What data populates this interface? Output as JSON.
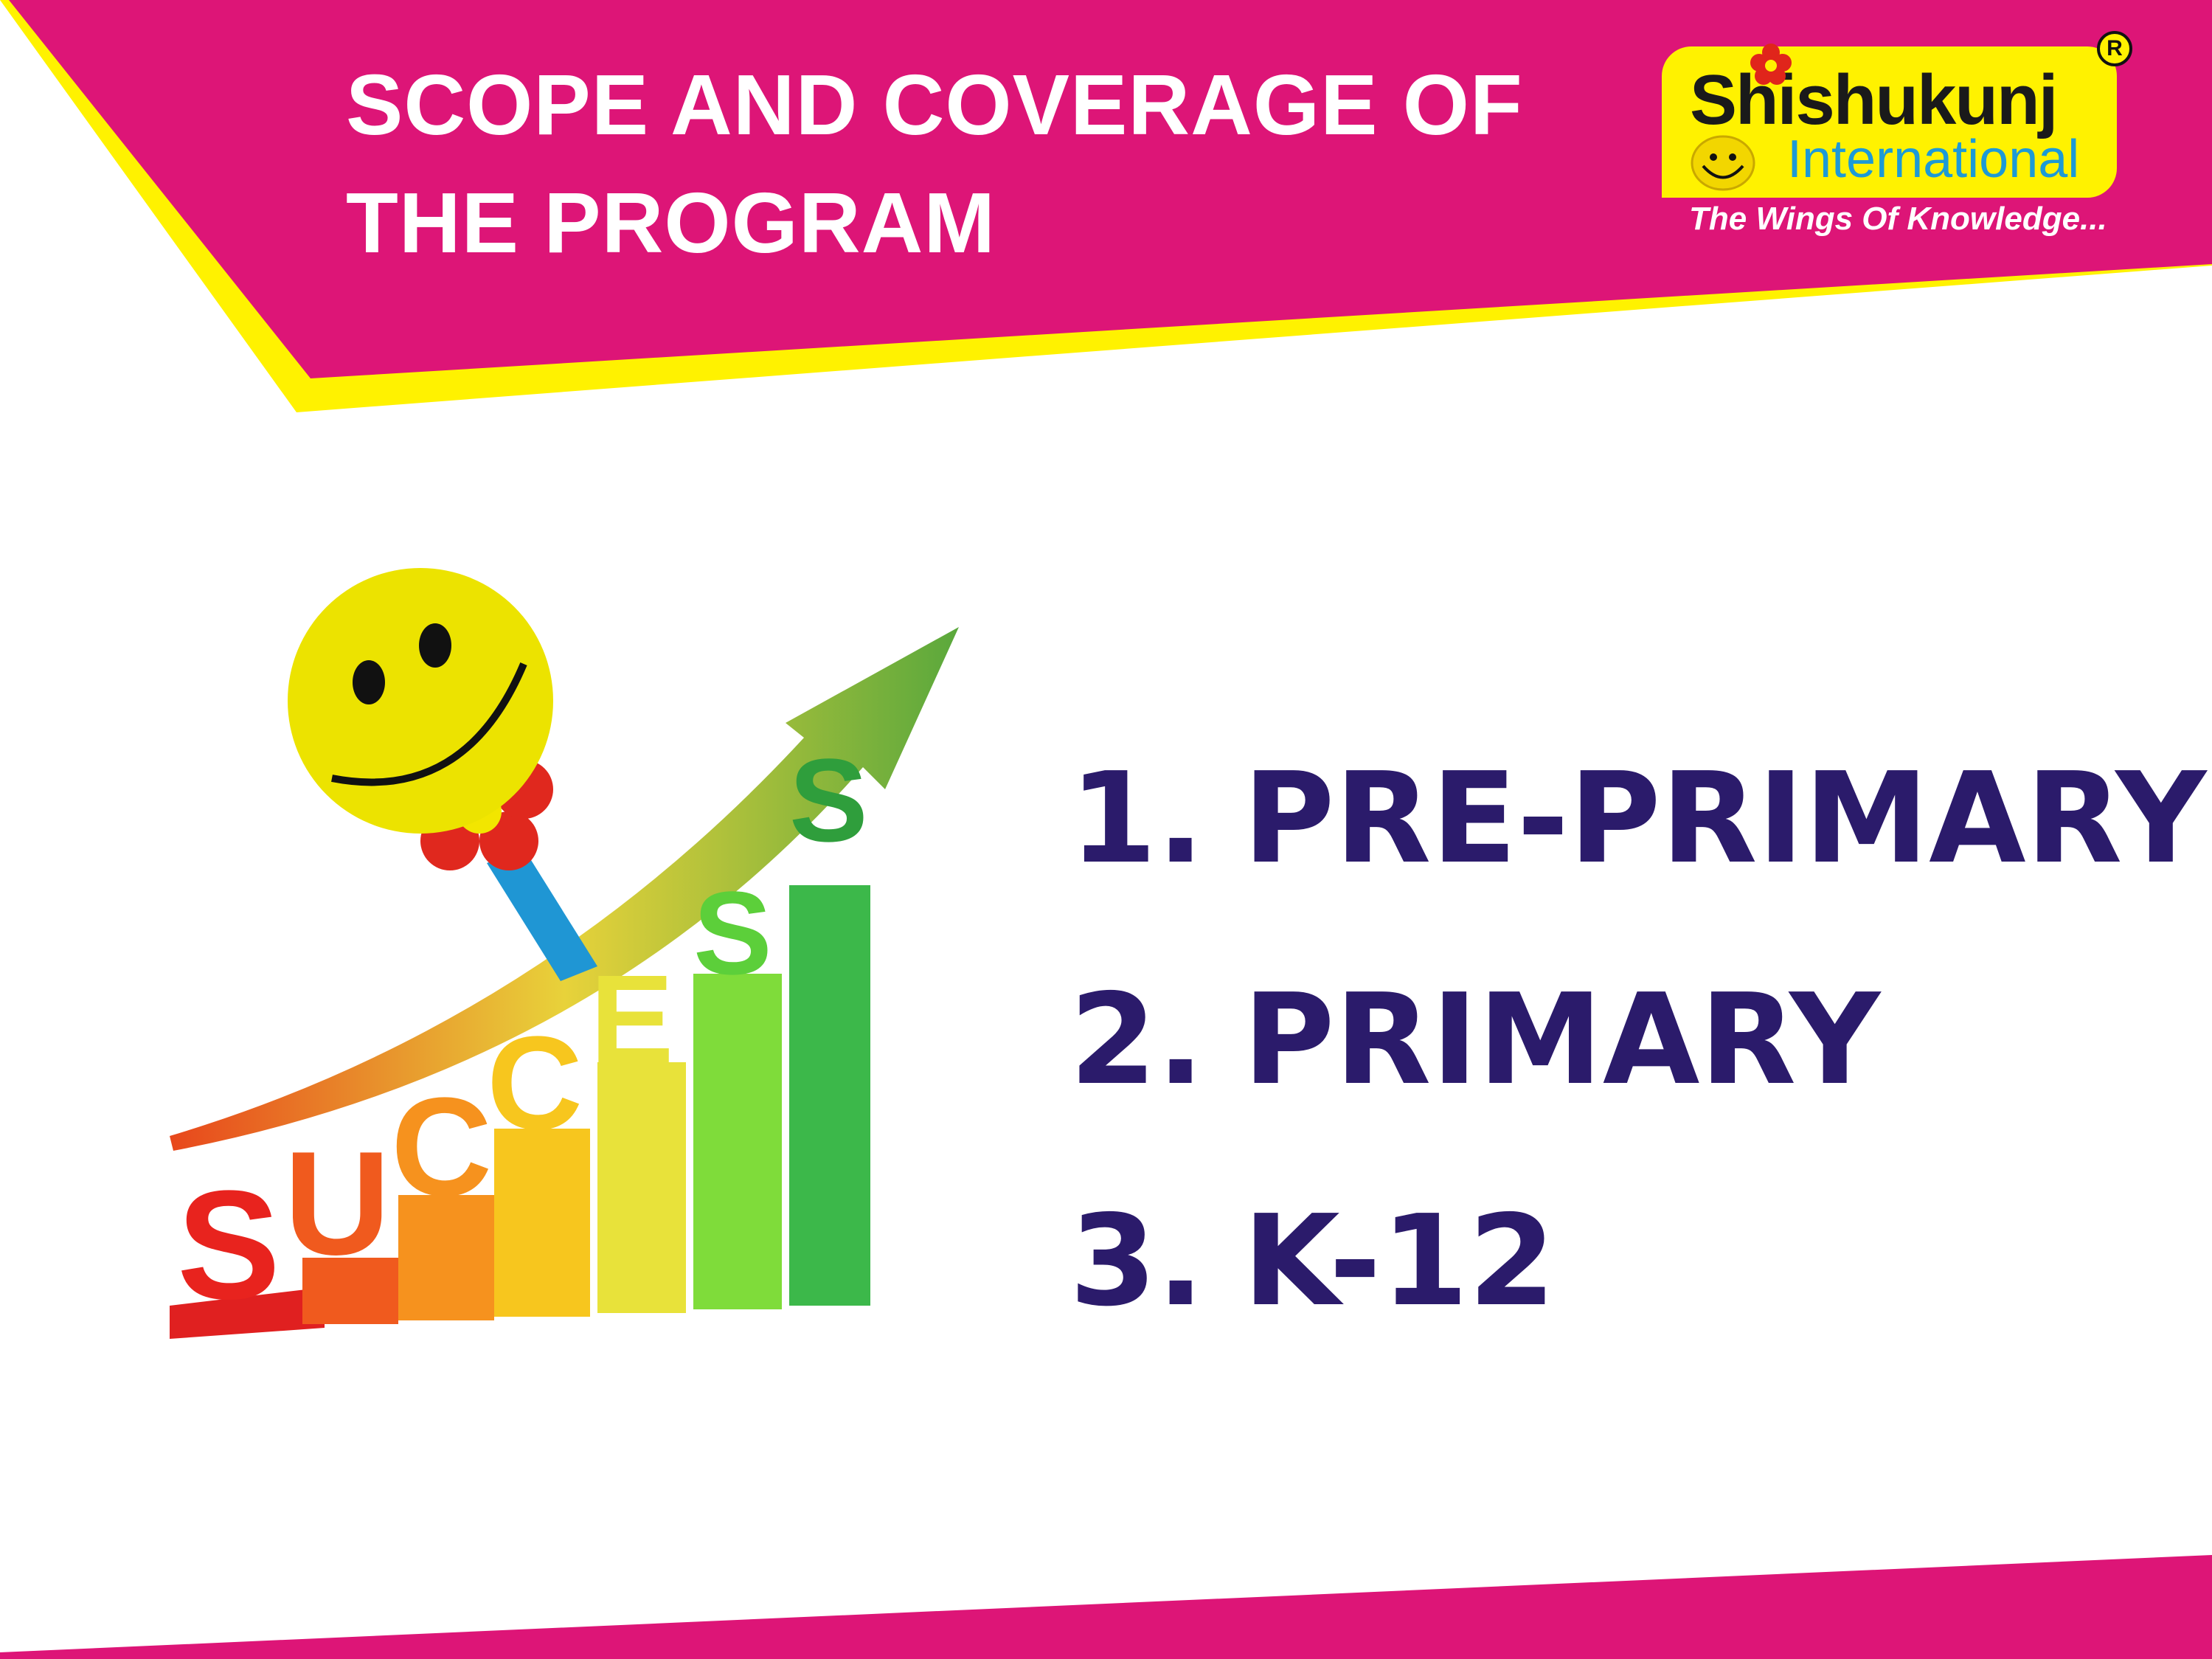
{
  "slide": {
    "title_lines": [
      "SCOPE AND COVERAGE OF",
      "THE PROGRAM"
    ],
    "items": [
      {
        "number": "1.",
        "label": "PRE-PRIMARY"
      },
      {
        "number": "2.",
        "label": "PRIMARY"
      },
      {
        "number": "3.",
        "label": "K-12"
      }
    ]
  },
  "logo": {
    "name": "Shishukunj",
    "subtitle": "International",
    "registered": "R",
    "tagline": "The Wings Of Knowledge..."
  },
  "illustration": {
    "word": "SUCCESS",
    "icons": [
      "smiley-icon",
      "growth-arrow-icon",
      "bar-steps"
    ]
  },
  "colors": {
    "banner": "#dd1577",
    "accent_stripe": "#fff200",
    "list_text": "#2b1b6b",
    "logo_blue": "#1d9ad6"
  }
}
